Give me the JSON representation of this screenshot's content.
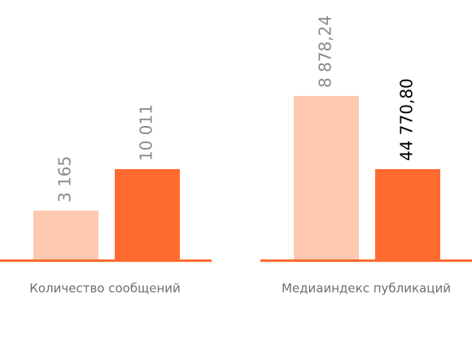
{
  "colors": {
    "background": "#ffffff",
    "baseline": "#ff6a30",
    "category_text": "#6f6f6f"
  },
  "chart_data": [
    {
      "type": "bar",
      "categories": [
        "Количество сообщений"
      ],
      "series": [
        {
          "color": "#fdc9b0",
          "label_color": "#8a8a8a",
          "values": [
            3165
          ],
          "labels": [
            "3 165"
          ]
        },
        {
          "color": "#ff6a30",
          "label_color": "#8a8a8a",
          "values": [
            10011
          ],
          "labels": [
            "10 011"
          ]
        }
      ],
      "title": "",
      "xlabel": "",
      "ylabel": "",
      "ylim": [
        0,
        10011
      ],
      "grid": false,
      "legend": "none"
    },
    {
      "type": "bar",
      "categories": [
        "Медиаиндекс публикаций"
      ],
      "series": [
        {
          "color": "#fdc9b0",
          "label_color": "#8a8a8a",
          "values": [
            8878.24
          ],
          "labels": [
            "8 878,24"
          ]
        },
        {
          "color": "#ff6a30",
          "label_color": "#000000",
          "values": [
            44770.8
          ],
          "labels": [
            "44 770,80"
          ]
        }
      ],
      "title": "",
      "xlabel": "",
      "ylabel": "",
      "ylim": [
        0,
        44770.8
      ],
      "grid": false,
      "legend": "none",
      "note": "bar heights in this panel are not drawn to a common linear scale"
    }
  ]
}
